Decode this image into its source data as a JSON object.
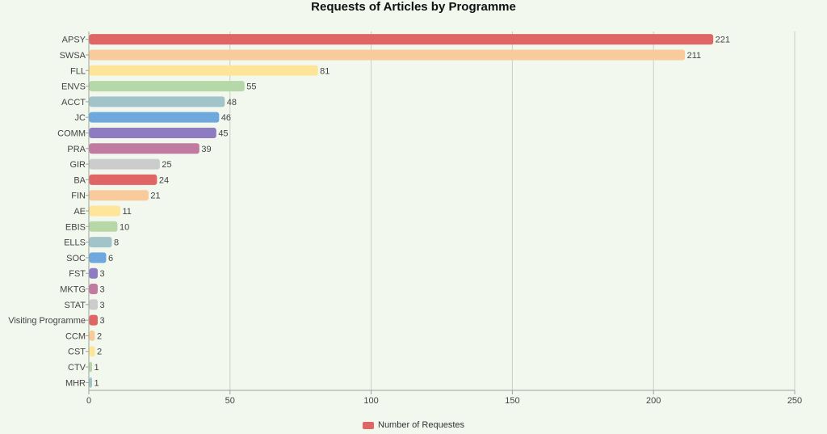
{
  "chart_data": {
    "type": "bar",
    "orientation": "horizontal",
    "title": "Requests of Articles by Programme",
    "categories": [
      "APSY",
      "SWSA",
      "FLL",
      "ENVS",
      "ACCT",
      "JC",
      "COMM",
      "PRA",
      "GIR",
      "BA",
      "FIN",
      "AE",
      "EBIS",
      "ELLS",
      "SOC",
      "FST",
      "MKTG",
      "STAT",
      "Visiting Programme",
      "CCM",
      "CST",
      "CTV",
      "MHR"
    ],
    "series": [
      {
        "name": "Number of Requestes",
        "values": [
          221,
          211,
          81,
          55,
          48,
          46,
          45,
          39,
          25,
          24,
          21,
          11,
          10,
          8,
          6,
          3,
          3,
          3,
          3,
          2,
          2,
          1,
          1
        ]
      }
    ],
    "x_ticks": [
      "0",
      "50",
      "100",
      "150",
      "200",
      "250"
    ],
    "xlim": [
      0,
      250
    ],
    "grid": "vertical",
    "legend_position": "bottom",
    "palette": [
      "#e06666",
      "#f9cb9c",
      "#ffe599",
      "#b6d7a8",
      "#a2c4c9",
      "#6fa8dc",
      "#8e7cc3",
      "#c27ba0",
      "#cccccc"
    ]
  }
}
